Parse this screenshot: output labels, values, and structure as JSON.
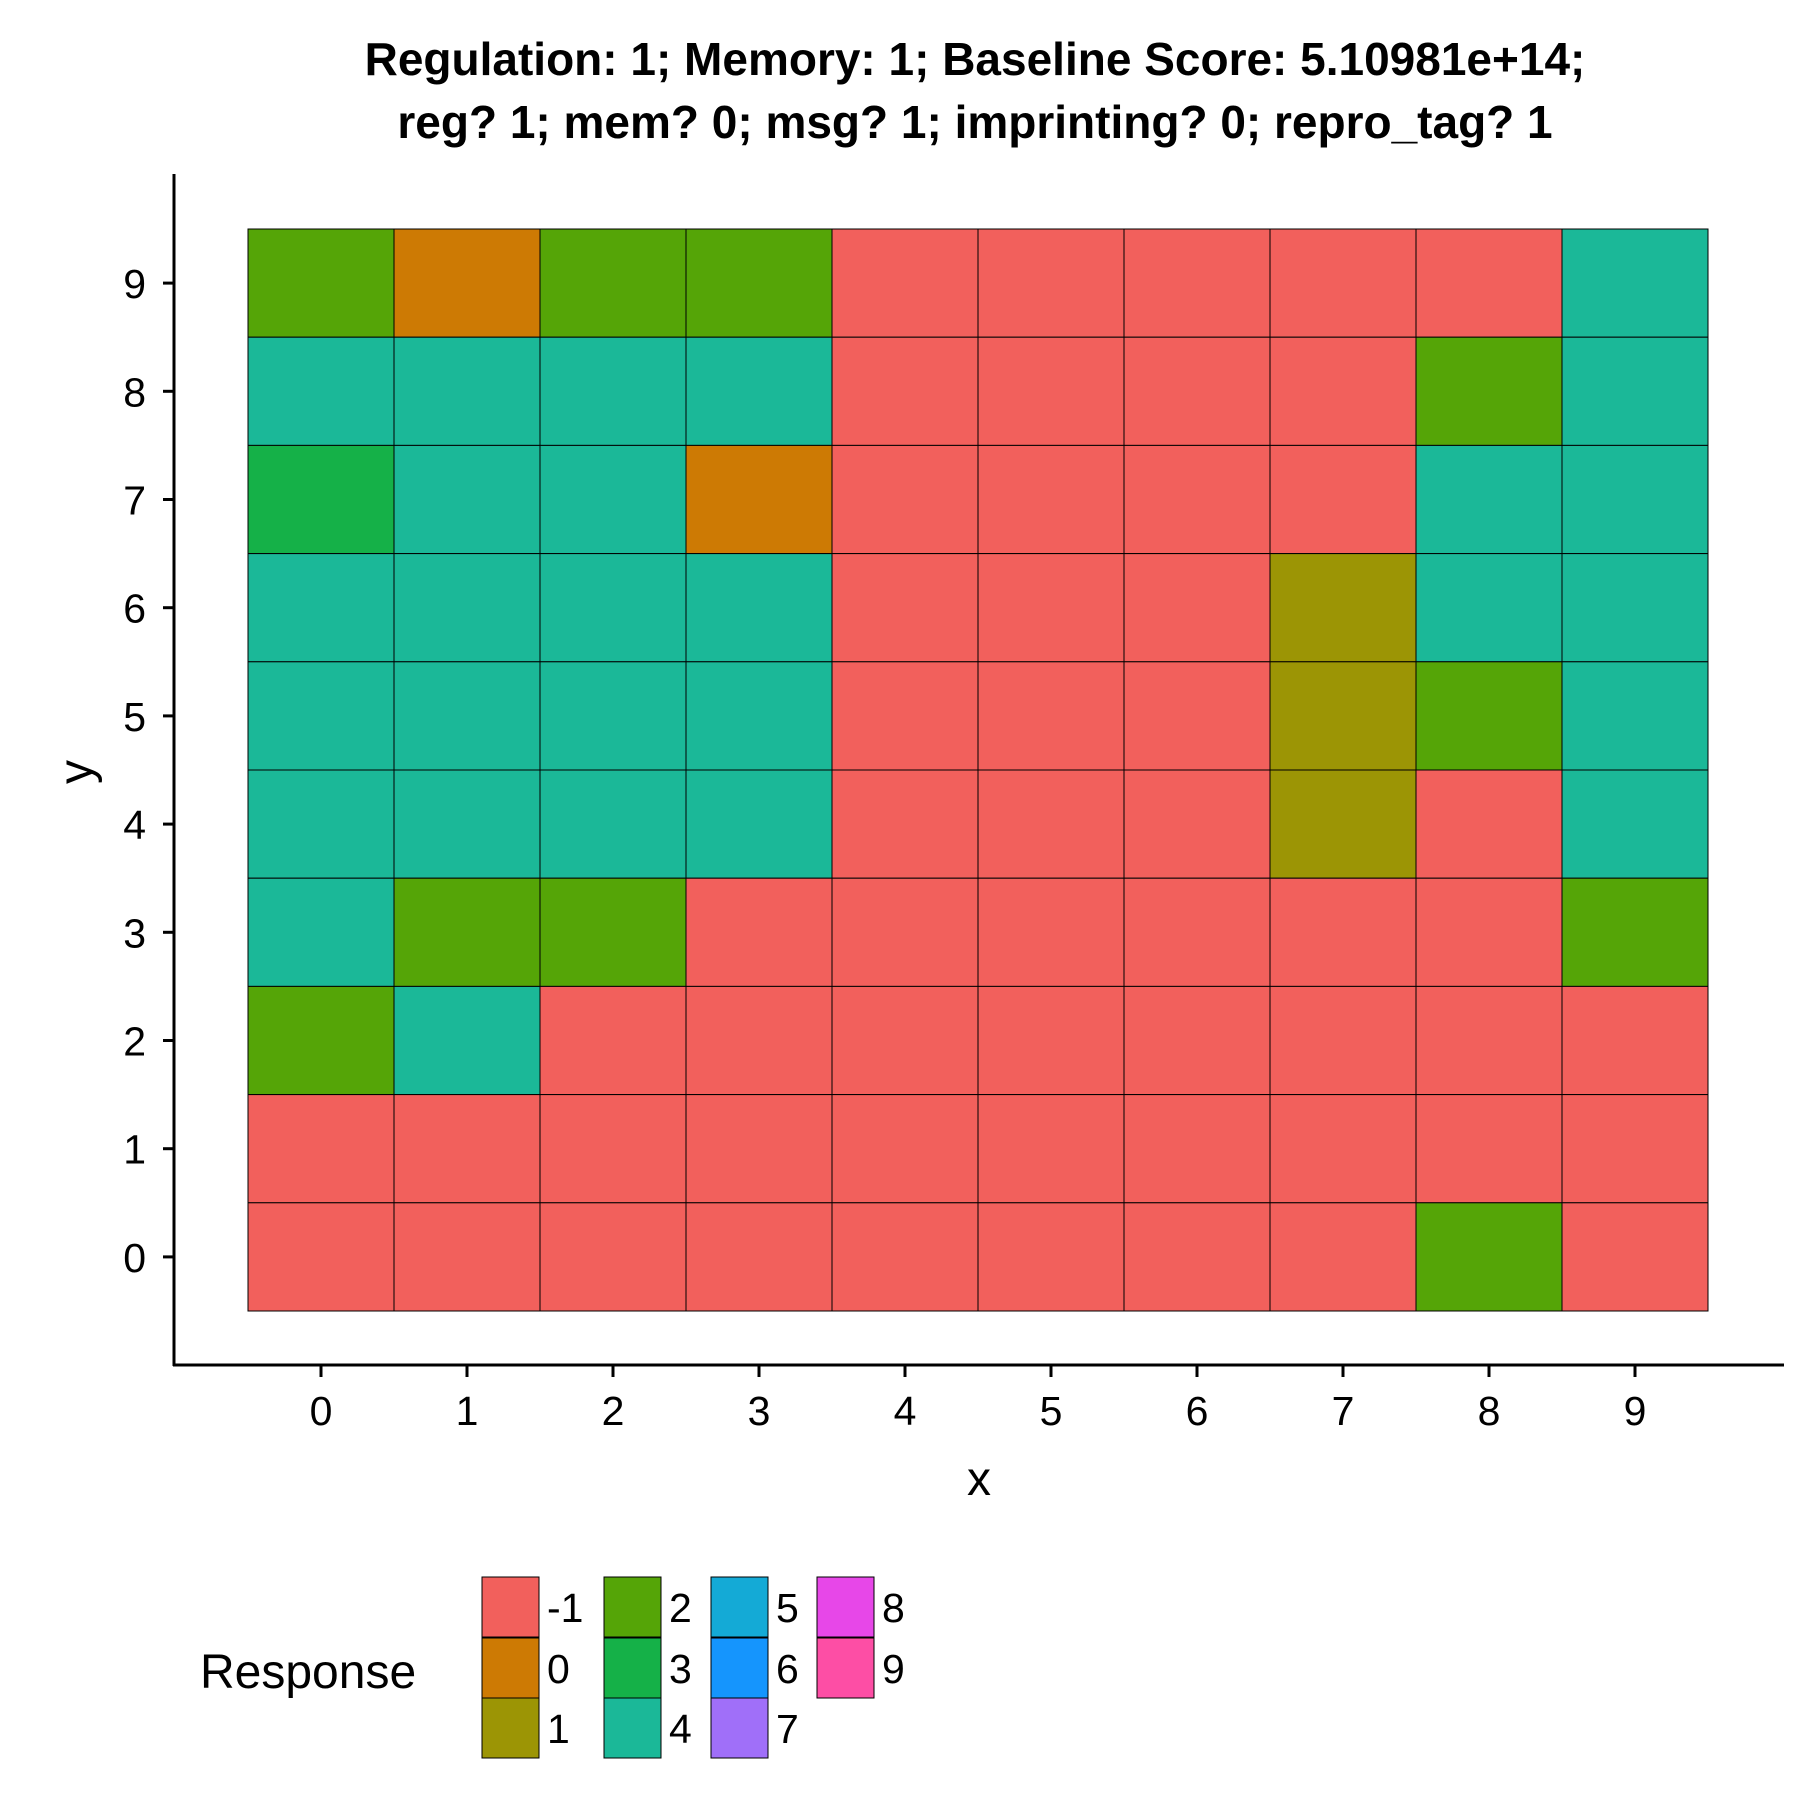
{
  "chart_data": {
    "type": "heatmap",
    "title_lines": [
      "Regulation: 1; Memory: 1; Baseline Score: 5.10981e+14;",
      "reg? 1; mem? 0; msg? 1; imprinting? 0; repro_tag? 1"
    ],
    "xlabel": "x",
    "ylabel": "y",
    "x_ticks": [
      "0",
      "1",
      "2",
      "3",
      "4",
      "5",
      "6",
      "7",
      "8",
      "9"
    ],
    "y_ticks": [
      "0",
      "1",
      "2",
      "3",
      "4",
      "5",
      "6",
      "7",
      "8",
      "9"
    ],
    "legend": {
      "title": "Response",
      "position": "bottom",
      "entries": [
        {
          "label": "-1",
          "color": "#F2605C"
        },
        {
          "label": "0",
          "color": "#CD7A04"
        },
        {
          "label": "1",
          "color": "#9C9505"
        },
        {
          "label": "2",
          "color": "#55A507"
        },
        {
          "label": "3",
          "color": "#15B148"
        },
        {
          "label": "4",
          "color": "#1BB898"
        },
        {
          "label": "5",
          "color": "#14AAD6"
        },
        {
          "label": "6",
          "color": "#1595FD"
        },
        {
          "label": "7",
          "color": "#A06FF9"
        },
        {
          "label": "8",
          "color": "#E747E8"
        },
        {
          "label": "9",
          "color": "#FD4EA5"
        }
      ]
    },
    "grid": [
      {
        "y": 9,
        "values": [
          2,
          0,
          2,
          2,
          -1,
          -1,
          -1,
          -1,
          -1,
          4
        ]
      },
      {
        "y": 8,
        "values": [
          4,
          4,
          4,
          4,
          -1,
          -1,
          -1,
          -1,
          2,
          4
        ]
      },
      {
        "y": 7,
        "values": [
          3,
          4,
          4,
          0,
          -1,
          -1,
          -1,
          -1,
          4,
          4
        ]
      },
      {
        "y": 6,
        "values": [
          4,
          4,
          4,
          4,
          -1,
          -1,
          -1,
          1,
          4,
          4
        ]
      },
      {
        "y": 5,
        "values": [
          4,
          4,
          4,
          4,
          -1,
          -1,
          -1,
          1,
          2,
          4
        ]
      },
      {
        "y": 4,
        "values": [
          4,
          4,
          4,
          4,
          -1,
          -1,
          -1,
          1,
          -1,
          4
        ]
      },
      {
        "y": 3,
        "values": [
          4,
          2,
          2,
          -1,
          -1,
          -1,
          -1,
          -1,
          -1,
          2
        ]
      },
      {
        "y": 2,
        "values": [
          2,
          4,
          -1,
          -1,
          -1,
          -1,
          -1,
          -1,
          -1,
          -1
        ]
      },
      {
        "y": 1,
        "values": [
          -1,
          -1,
          -1,
          -1,
          -1,
          -1,
          -1,
          -1,
          -1,
          -1
        ]
      },
      {
        "y": 0,
        "values": [
          -1,
          -1,
          -1,
          -1,
          -1,
          -1,
          -1,
          -1,
          2,
          -1
        ]
      }
    ]
  }
}
